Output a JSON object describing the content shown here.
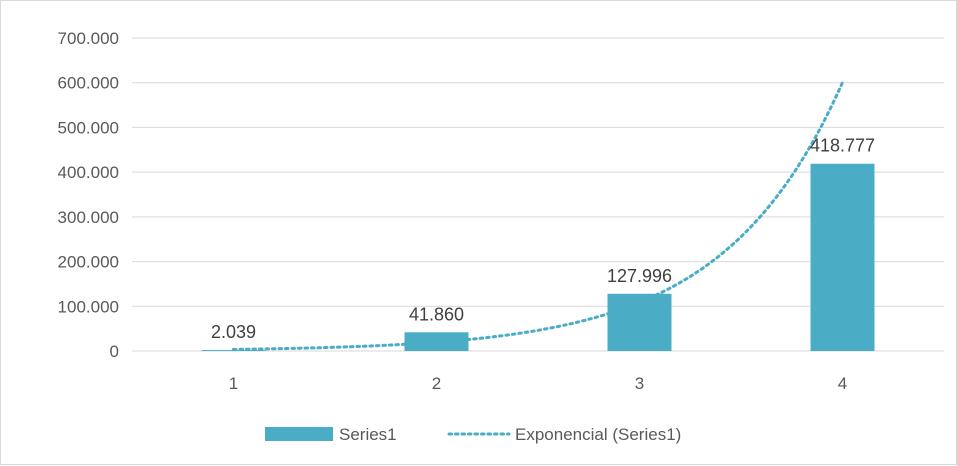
{
  "chart_data": {
    "type": "bar",
    "categories": [
      "1",
      "2",
      "3",
      "4"
    ],
    "series": [
      {
        "name": "Series1",
        "values": [
          2039,
          41860,
          127996,
          418777
        ],
        "data_labels": [
          "2.039",
          "41.860",
          "127.996",
          "418.777"
        ],
        "color": "#4bacc6"
      }
    ],
    "trendline": {
      "name": "Exponencial (Series1)",
      "type": "exponential",
      "style": "dotted",
      "color": "#4bacc6"
    },
    "ylim": [
      0,
      700000
    ],
    "yticks": [
      0,
      100000,
      200000,
      300000,
      400000,
      500000,
      600000,
      700000
    ],
    "ytick_labels": [
      "0",
      "100.000",
      "200.000",
      "300.000",
      "400.000",
      "500.000",
      "600.000",
      "700.000"
    ],
    "grid": true,
    "legend_position": "bottom",
    "title": "",
    "xlabel": "",
    "ylabel": ""
  }
}
